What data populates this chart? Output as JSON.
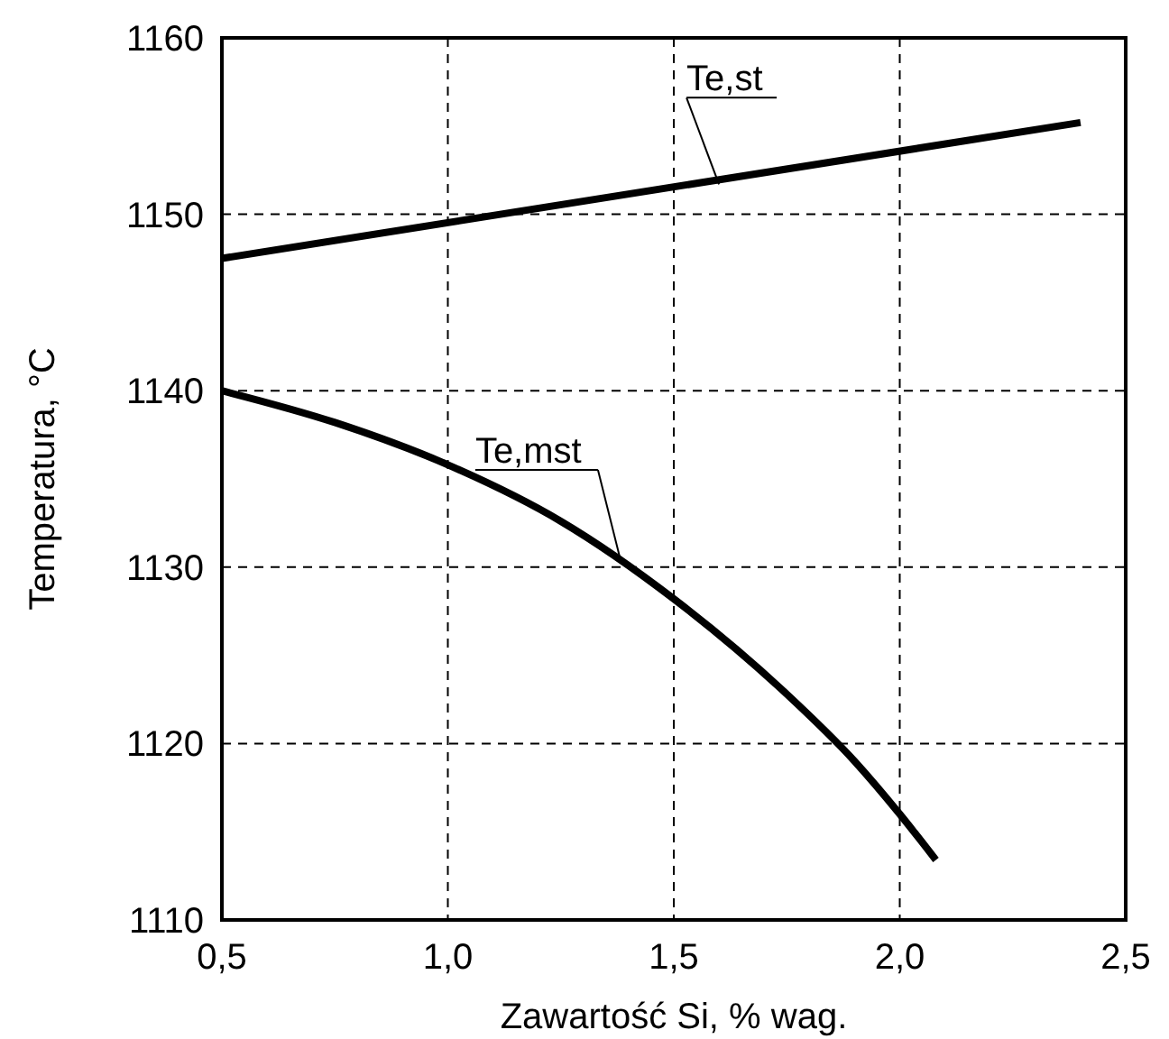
{
  "chart_data": {
    "type": "line",
    "xlabel": "Zawartość Si, % wag.",
    "ylabel": "Temperatura, °C",
    "xlim": [
      0.5,
      2.5
    ],
    "xticks": [
      {
        "value": 0.5,
        "label": "0,5"
      },
      {
        "value": 1.0,
        "label": "1,0"
      },
      {
        "value": 1.5,
        "label": "1,5"
      },
      {
        "value": 2.0,
        "label": "2,0"
      },
      {
        "value": 2.5,
        "label": "2,5"
      }
    ],
    "ylim": [
      1110,
      1160
    ],
    "yticks": [
      1110,
      1120,
      1130,
      1140,
      1150,
      1160
    ],
    "grid": true,
    "line_style": "solid",
    "series": [
      {
        "color": "#000000",
        "x": [
          0.5,
          2.4
        ],
        "values": [
          1147.5,
          1155.2
        ]
      },
      {
        "color": "#000000",
        "x": [
          0.5,
          0.75,
          1.0,
          1.25,
          1.5,
          1.75,
          1.9,
          2.0,
          2.08
        ],
        "values": [
          1140,
          1138.2,
          1135.8,
          1132.6,
          1128.2,
          1122.8,
          1119,
          1116,
          1113.4
        ]
      }
    ],
    "annotations": [
      {
        "text": "Te,st",
        "x": 1.6,
        "y": 1151.7
      },
      {
        "text": "Te,mst",
        "x": 1.38,
        "y": 1130.6
      }
    ]
  }
}
